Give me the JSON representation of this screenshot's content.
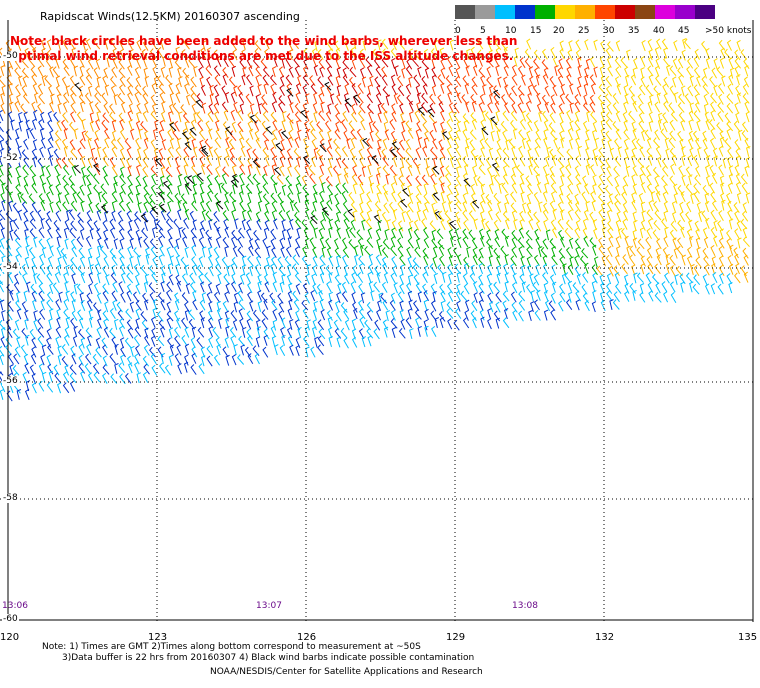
{
  "title": "Rapidscat Winds(12.5KM) 20160307 ascending",
  "note": "Note: black circles have been added to the wind barbs, wherever less than optimal wind retrieval conditions are met due to the ISS altitude changes.",
  "colorbar": {
    "labels": [
      "0",
      "5",
      "10",
      "15",
      "20",
      "25",
      "30",
      "35",
      "40",
      "45",
      ">50 knots"
    ],
    "colors": [
      "#555555",
      "#9a9a9a",
      "#00bfff",
      "#0033cc",
      "#00b000",
      "#ffd700",
      "#ffb000",
      "#ff4500",
      "#cc0000",
      "#8b4513",
      "#dd00dd",
      "#9900cc",
      "#4b0082"
    ]
  },
  "map": {
    "lat_labels": [
      "-50",
      "-52",
      "-54",
      "-56",
      "-58",
      "-60"
    ],
    "lon_labels": [
      "120",
      "123",
      "126",
      "129",
      "132",
      "135"
    ],
    "time_labels": [
      "13:06",
      "13:07",
      "13:08"
    ]
  },
  "footer": {
    "line1": "Note: 1) Times are GMT 2)Times along bottom correspond to measurement at ~50S",
    "line2": "3)Data buffer is 22 hrs from 20160307 4) Black wind barbs indicate possible contamination",
    "line3": "NOAA/NESDIS/Center for Satellite Applications and Research"
  }
}
